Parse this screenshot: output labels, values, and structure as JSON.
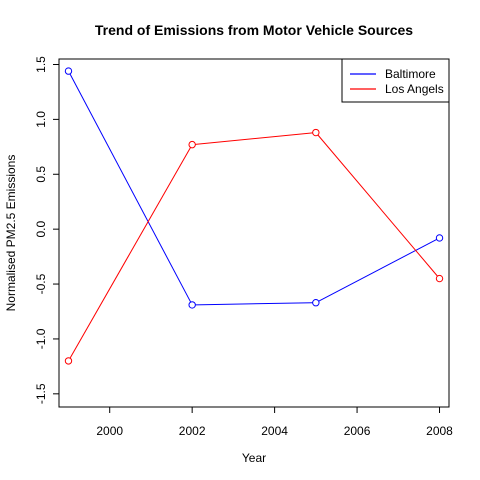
{
  "chart_data": {
    "type": "line",
    "title": "Trend of Emissions from Motor Vehicle Sources",
    "xlabel": "Year",
    "ylabel": "Normalised PM2.5 Emissions",
    "x": [
      1999,
      2002,
      2005,
      2008
    ],
    "xlim": [
      1998.77,
      2008.23
    ],
    "ylim": [
      -1.62,
      1.55
    ],
    "xticks": [
      2000,
      2002,
      2004,
      2006,
      2008
    ],
    "yticks": [
      -1.5,
      -1.0,
      -0.5,
      0.0,
      0.5,
      1.0,
      1.5
    ],
    "ytick_labels": [
      "-1.5",
      "-1.0",
      "-0.5",
      "0.0",
      "0.5",
      "1.0",
      "1.5"
    ],
    "grid": false,
    "legend_position": "top-right",
    "series": [
      {
        "name": "Baltimore",
        "color": "#0000ff",
        "values": [
          1.44,
          -0.69,
          -0.67,
          -0.08
        ]
      },
      {
        "name": "Los Angels",
        "color": "#ff0000",
        "values": [
          -1.2,
          0.77,
          0.88,
          -0.45
        ]
      }
    ]
  }
}
